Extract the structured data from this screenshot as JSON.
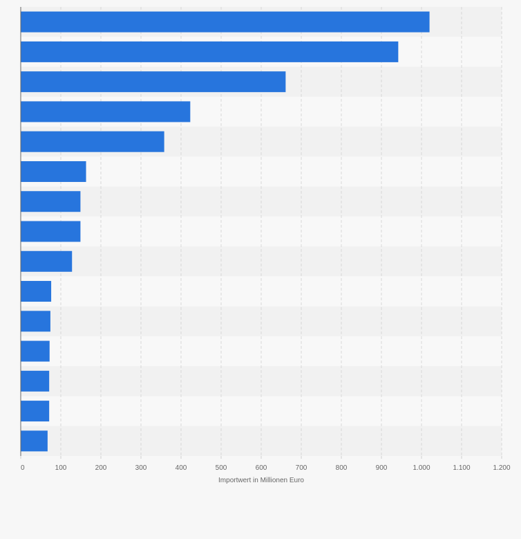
{
  "chart_data": {
    "type": "bar",
    "orientation": "horizontal",
    "categories": [
      "",
      "",
      "",
      "",
      "",
      "",
      "",
      "",
      "",
      "",
      "",
      "",
      "",
      "",
      ""
    ],
    "series": [
      {
        "values": [
          1020,
          942,
          661,
          423,
          358,
          163,
          149,
          149,
          128,
          76,
          74,
          72,
          71,
          71,
          67
        ],
        "color": "#2775dd"
      }
    ],
    "xlabel": "Importwert in Millionen Euro",
    "xlim": [
      0,
      1200
    ],
    "x_ticks": [
      0,
      100,
      200,
      300,
      400,
      500,
      600,
      700,
      800,
      900,
      1000,
      1100,
      1200
    ],
    "x_tick_labels": [
      "0",
      "100",
      "200",
      "300",
      "400",
      "500",
      "600",
      "700",
      "800",
      "900",
      "1.000",
      "1.100",
      "1.200"
    ],
    "grid": true,
    "legend": "none",
    "colors": {
      "background": "#f7f7f7",
      "band_dark": "#f1f1f1",
      "band_light": "#f8f8f8",
      "gridline": "#d7d7d7",
      "axis": "#666666",
      "tick_text": "#666666"
    }
  }
}
